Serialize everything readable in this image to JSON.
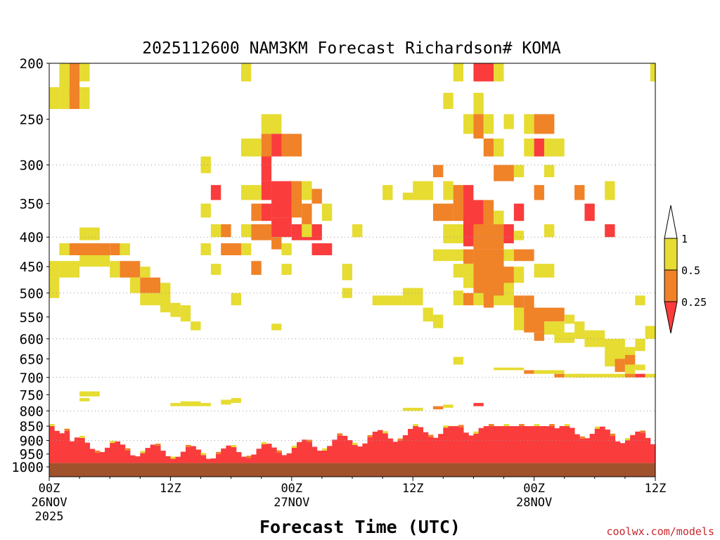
{
  "chart_data": {
    "type": "heatmap",
    "title": "2025112600 NAM3KM Forecast Richardson# KOMA",
    "xlabel": "Forecast Time (UTC)",
    "ylabel": "",
    "xlim_hours": [
      0,
      60
    ],
    "ylim_hpa": [
      1040,
      200
    ],
    "y_scale": "log",
    "grid": "horizontal dotted",
    "x_ticks": [
      {
        "hour": 0,
        "label": "00Z",
        "date": "26NOV",
        "year": "2025"
      },
      {
        "hour": 12,
        "label": "12Z",
        "date": "",
        "year": ""
      },
      {
        "hour": 24,
        "label": "00Z",
        "date": "27NOV",
        "year": ""
      },
      {
        "hour": 36,
        "label": "12Z",
        "date": "",
        "year": ""
      },
      {
        "hour": 48,
        "label": "00Z",
        "date": "28NOV",
        "year": ""
      },
      {
        "hour": 60,
        "label": "12Z",
        "date": "",
        "year": ""
      }
    ],
    "y_ticks": [
      200,
      250,
      300,
      350,
      400,
      450,
      500,
      550,
      600,
      650,
      700,
      750,
      800,
      850,
      900,
      950,
      1000
    ],
    "y_tick_labels": [
      "200",
      "250",
      "300",
      "350",
      "400",
      "450",
      "500",
      "550",
      "600",
      "650",
      "700",
      "750",
      "800",
      "850",
      "900",
      "950",
      "1000"
    ],
    "gridlines_hpa": [
      300,
      400,
      500,
      600,
      700,
      800,
      900
    ],
    "legend": {
      "placement": "right",
      "labels": [
        "1",
        "0.5",
        "0.25"
      ],
      "bins": [
        {
          "range": "> 1",
          "color": "#ffffff"
        },
        {
          "range": "0.5 - 1",
          "color": "#e6dc32"
        },
        {
          "range": "0.25 - 0.5",
          "color": "#f08228"
        },
        {
          "range": "< 0.25",
          "color": "#fa3c3c"
        }
      ]
    },
    "colors": {
      "yellow": "#e6dc32",
      "orange": "#f08228",
      "red": "#fa3c3c",
      "ground": "#a0522d"
    },
    "ground_pressure_hpa": 985,
    "surface_layer_hpa": [
      850,
      985
    ],
    "cells": [
      [
        2,
        3,
        200,
        225,
        "orange"
      ],
      [
        1,
        2,
        200,
        220,
        "yellow"
      ],
      [
        3,
        4,
        200,
        215,
        "yellow"
      ],
      [
        0,
        1,
        220,
        240,
        "yellow"
      ],
      [
        1,
        2,
        215,
        240,
        "yellow"
      ],
      [
        2,
        3,
        220,
        240,
        "orange"
      ],
      [
        3,
        4,
        220,
        240,
        "yellow"
      ],
      [
        19,
        20,
        200,
        215,
        "yellow"
      ],
      [
        40,
        41,
        200,
        215,
        "yellow"
      ],
      [
        42,
        44,
        200,
        215,
        "red"
      ],
      [
        44,
        45,
        200,
        215,
        "yellow"
      ],
      [
        59.5,
        60,
        200,
        215,
        "yellow"
      ],
      [
        39,
        40,
        225,
        240,
        "yellow"
      ],
      [
        42,
        43,
        225,
        245,
        "yellow"
      ],
      [
        21,
        23,
        245,
        265,
        "yellow"
      ],
      [
        21,
        22,
        265,
        290,
        "orange"
      ],
      [
        22,
        23,
        265,
        290,
        "red"
      ],
      [
        23,
        25,
        265,
        290,
        "orange"
      ],
      [
        19,
        21,
        270,
        290,
        "yellow"
      ],
      [
        41,
        42,
        245,
        265,
        "yellow"
      ],
      [
        42,
        43,
        245,
        270,
        "orange"
      ],
      [
        43,
        44,
        245,
        265,
        "yellow"
      ],
      [
        45,
        46,
        245,
        260,
        "yellow"
      ],
      [
        47,
        48,
        245,
        265,
        "yellow"
      ],
      [
        48,
        50,
        245,
        265,
        "orange"
      ],
      [
        43,
        44,
        270,
        290,
        "orange"
      ],
      [
        44,
        45,
        270,
        290,
        "yellow"
      ],
      [
        47,
        48,
        270,
        290,
        "yellow"
      ],
      [
        48,
        49,
        270,
        290,
        "red"
      ],
      [
        49,
        50,
        270,
        290,
        "yellow"
      ],
      [
        50,
        51,
        270,
        290,
        "yellow"
      ],
      [
        15,
        16,
        290,
        310,
        "yellow"
      ],
      [
        21,
        22,
        290,
        320,
        "red"
      ],
      [
        22,
        24,
        320,
        370,
        "red"
      ],
      [
        21,
        22,
        320,
        345,
        "red"
      ],
      [
        24,
        25,
        320,
        370,
        "orange"
      ],
      [
        25,
        26,
        320,
        345,
        "yellow"
      ],
      [
        26,
        27,
        330,
        350,
        "orange"
      ],
      [
        16,
        17,
        325,
        345,
        "red"
      ],
      [
        19,
        21,
        325,
        345,
        "yellow"
      ],
      [
        33,
        34,
        325,
        345,
        "yellow"
      ],
      [
        36,
        38,
        320,
        345,
        "yellow"
      ],
      [
        35,
        36,
        335,
        345,
        "yellow"
      ],
      [
        38,
        39,
        300,
        315,
        "orange"
      ],
      [
        39,
        40,
        320,
        345,
        "yellow"
      ],
      [
        40,
        41,
        325,
        345,
        "orange"
      ],
      [
        41,
        42,
        325,
        345,
        "red"
      ],
      [
        44,
        46,
        300,
        320,
        "orange"
      ],
      [
        46,
        47,
        300,
        315,
        "yellow"
      ],
      [
        49,
        50,
        300,
        315,
        "yellow"
      ],
      [
        48,
        49,
        325,
        345,
        "orange"
      ],
      [
        52,
        53,
        325,
        345,
        "orange"
      ],
      [
        55,
        56,
        320,
        345,
        "yellow"
      ],
      [
        15,
        16,
        350,
        370,
        "yellow"
      ],
      [
        20,
        21,
        350,
        375,
        "orange"
      ],
      [
        21,
        22,
        350,
        375,
        "red"
      ],
      [
        22,
        24,
        370,
        400,
        "red"
      ],
      [
        24,
        27,
        380,
        405,
        "red"
      ],
      [
        25,
        26,
        350,
        380,
        "orange"
      ],
      [
        27,
        28,
        350,
        375,
        "yellow"
      ],
      [
        38,
        40,
        350,
        375,
        "orange"
      ],
      [
        40,
        41,
        345,
        375,
        "orange"
      ],
      [
        41,
        43,
        345,
        400,
        "red"
      ],
      [
        43,
        44,
        345,
        380,
        "orange"
      ],
      [
        44,
        45,
        360,
        380,
        "yellow"
      ],
      [
        46,
        47,
        350,
        375,
        "red"
      ],
      [
        53,
        54,
        350,
        375,
        "red"
      ],
      [
        16,
        17,
        380,
        400,
        "yellow"
      ],
      [
        17,
        18,
        380,
        400,
        "orange"
      ],
      [
        19,
        20,
        380,
        400,
        "yellow"
      ],
      [
        20,
        22,
        380,
        405,
        "orange"
      ],
      [
        22,
        23,
        400,
        420,
        "orange"
      ],
      [
        25,
        26,
        380,
        400,
        "yellow"
      ],
      [
        30,
        31,
        380,
        400,
        "yellow"
      ],
      [
        39,
        41,
        380,
        410,
        "yellow"
      ],
      [
        41,
        42,
        380,
        415,
        "red"
      ],
      [
        42,
        45,
        380,
        420,
        "orange"
      ],
      [
        45,
        46,
        380,
        410,
        "red"
      ],
      [
        46,
        47,
        390,
        405,
        "yellow"
      ],
      [
        49,
        50,
        380,
        400,
        "yellow"
      ],
      [
        55,
        56,
        380,
        400,
        "red"
      ],
      [
        3,
        5,
        385,
        405,
        "yellow"
      ],
      [
        1,
        2,
        410,
        430,
        "yellow"
      ],
      [
        2,
        6,
        410,
        430,
        "orange"
      ],
      [
        6,
        7,
        410,
        430,
        "orange"
      ],
      [
        7,
        8,
        410,
        430,
        "yellow"
      ],
      [
        15,
        16,
        410,
        430,
        "yellow"
      ],
      [
        17,
        19,
        410,
        430,
        "orange"
      ],
      [
        19,
        20,
        410,
        430,
        "yellow"
      ],
      [
        23,
        24,
        410,
        430,
        "yellow"
      ],
      [
        26,
        28,
        410,
        430,
        "red"
      ],
      [
        38,
        41,
        420,
        440,
        "yellow"
      ],
      [
        41,
        42,
        420,
        445,
        "orange"
      ],
      [
        42,
        45,
        420,
        455,
        "orange"
      ],
      [
        45,
        46,
        420,
        440,
        "yellow"
      ],
      [
        46,
        48,
        420,
        440,
        "orange"
      ],
      [
        0,
        1,
        440,
        470,
        "yellow"
      ],
      [
        1,
        3,
        440,
        470,
        "yellow"
      ],
      [
        3,
        6,
        430,
        450,
        "yellow"
      ],
      [
        6,
        7,
        440,
        470,
        "yellow"
      ],
      [
        7,
        9,
        440,
        470,
        "orange"
      ],
      [
        9,
        10,
        450,
        470,
        "yellow"
      ],
      [
        16,
        17,
        445,
        465,
        "yellow"
      ],
      [
        20,
        21,
        440,
        465,
        "orange"
      ],
      [
        23,
        24,
        445,
        465,
        "yellow"
      ],
      [
        29,
        30,
        445,
        475,
        "yellow"
      ],
      [
        40,
        42,
        445,
        470,
        "yellow"
      ],
      [
        42,
        46,
        450,
        490,
        "orange"
      ],
      [
        46,
        47,
        450,
        480,
        "yellow"
      ],
      [
        48,
        50,
        445,
        470,
        "yellow"
      ],
      [
        8,
        9,
        470,
        500,
        "yellow"
      ],
      [
        9,
        11,
        470,
        500,
        "orange"
      ],
      [
        11,
        12,
        480,
        505,
        "yellow"
      ],
      [
        0,
        1,
        470,
        510,
        "yellow"
      ],
      [
        29,
        30,
        490,
        510,
        "yellow"
      ],
      [
        41,
        42,
        470,
        490,
        "yellow"
      ],
      [
        42,
        45,
        480,
        510,
        "orange"
      ],
      [
        45,
        46,
        480,
        510,
        "yellow"
      ],
      [
        9,
        11,
        500,
        525,
        "yellow"
      ],
      [
        11,
        12,
        500,
        540,
        "yellow"
      ],
      [
        12,
        13,
        520,
        550,
        "yellow"
      ],
      [
        13,
        14,
        525,
        560,
        "yellow"
      ],
      [
        18,
        19,
        500,
        525,
        "yellow"
      ],
      [
        32,
        35,
        505,
        525,
        "yellow"
      ],
      [
        35,
        37,
        490,
        525,
        "yellow"
      ],
      [
        40,
        41,
        495,
        525,
        "yellow"
      ],
      [
        41,
        42,
        500,
        525,
        "orange"
      ],
      [
        42,
        43,
        500,
        525,
        "yellow"
      ],
      [
        43,
        44,
        505,
        530,
        "orange"
      ],
      [
        44,
        45,
        505,
        525,
        "yellow"
      ],
      [
        45,
        46,
        500,
        525,
        "yellow"
      ],
      [
        46,
        47,
        505,
        530,
        "orange"
      ],
      [
        47,
        48,
        505,
        550,
        "orange"
      ],
      [
        58,
        59,
        505,
        525,
        "yellow"
      ],
      [
        37,
        38,
        530,
        560,
        "yellow"
      ],
      [
        38,
        39,
        545,
        575,
        "yellow"
      ],
      [
        46,
        47,
        530,
        580,
        "yellow"
      ],
      [
        47,
        49,
        530,
        585,
        "orange"
      ],
      [
        49,
        51,
        530,
        560,
        "orange"
      ],
      [
        51,
        52,
        545,
        565,
        "yellow"
      ],
      [
        49,
        51,
        560,
        590,
        "yellow"
      ],
      [
        52,
        53,
        560,
        600,
        "yellow"
      ],
      [
        53,
        55,
        580,
        620,
        "yellow"
      ],
      [
        14,
        15,
        560,
        580,
        "yellow"
      ],
      [
        22,
        23,
        565,
        580,
        "yellow"
      ],
      [
        48,
        49,
        585,
        605,
        "orange"
      ],
      [
        50,
        52,
        585,
        610,
        "yellow"
      ],
      [
        55,
        57,
        600,
        660,
        "yellow"
      ],
      [
        57,
        58,
        620,
        660,
        "yellow"
      ],
      [
        59,
        60,
        570,
        600,
        "yellow"
      ],
      [
        58,
        59,
        600,
        630,
        "yellow"
      ],
      [
        57,
        58,
        640,
        665,
        "orange"
      ],
      [
        55,
        56,
        650,
        670,
        "yellow"
      ],
      [
        56,
        57,
        650,
        685,
        "orange"
      ],
      [
        57,
        58,
        665,
        690,
        "yellow"
      ],
      [
        58,
        59,
        665,
        680,
        "yellow"
      ],
      [
        59,
        60,
        690,
        700,
        "yellow"
      ],
      [
        58,
        59,
        690,
        700,
        "red"
      ],
      [
        56,
        57,
        690,
        700,
        "yellow"
      ],
      [
        57,
        58,
        690,
        700,
        "orange"
      ],
      [
        40,
        41,
        645,
        665,
        "yellow"
      ],
      [
        47,
        48,
        680,
        690,
        "orange"
      ],
      [
        50,
        51,
        690,
        700,
        "orange"
      ],
      [
        52,
        53,
        690,
        700,
        "orange"
      ],
      [
        44,
        47,
        673,
        680,
        "yellow"
      ],
      [
        48,
        51,
        680,
        690,
        "yellow"
      ],
      [
        51,
        56,
        690,
        700,
        "yellow"
      ],
      [
        3,
        5,
        740,
        755,
        "yellow"
      ],
      [
        3,
        4,
        760,
        770,
        "yellow"
      ],
      [
        13,
        15,
        770,
        785,
        "yellow"
      ],
      [
        15,
        16,
        775,
        785,
        "yellow"
      ],
      [
        17,
        18,
        765,
        780,
        "yellow"
      ],
      [
        18,
        19,
        760,
        775,
        "yellow"
      ],
      [
        12,
        13,
        775,
        785,
        "yellow"
      ],
      [
        42,
        43,
        775,
        785,
        "red"
      ],
      [
        39,
        40,
        780,
        790,
        "yellow"
      ],
      [
        35,
        37,
        790,
        800,
        "yellow"
      ],
      [
        38,
        39,
        785,
        795,
        "orange"
      ]
    ]
  },
  "credit": "coolwx.com/models"
}
